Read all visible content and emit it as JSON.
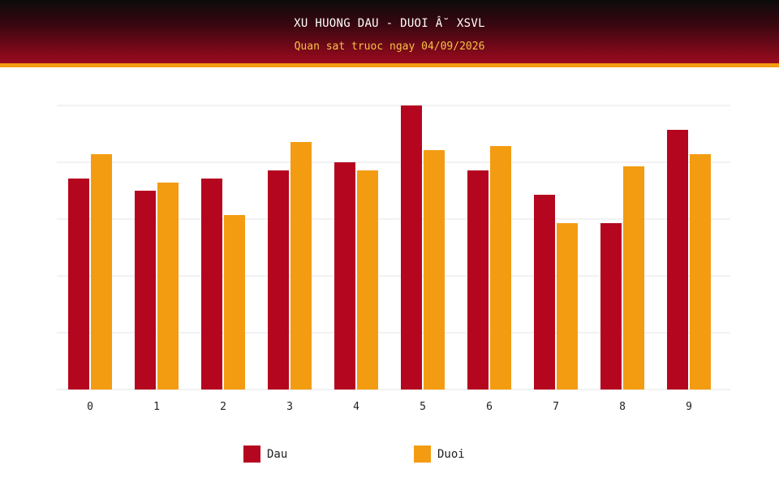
{
  "header": {
    "title": "XU HUONG DAU - DUOI Â˘ XSVL",
    "subtitle": "Quan sat truoc ngay 04/09/2026"
  },
  "colors": {
    "dau": "#b5061f",
    "duoi": "#f39c12"
  },
  "chart_data": {
    "type": "bar",
    "title": "XU HUONG DAU - DUOI Â˘ XSVL",
    "subtitle": "Quan sat truoc ngay 04/09/2026",
    "categories": [
      "0",
      "1",
      "2",
      "3",
      "4",
      "5",
      "6",
      "7",
      "8",
      "9"
    ],
    "series": [
      {
        "name": "Dau",
        "values": [
          26,
          24.5,
          26,
          27,
          28,
          35,
          27,
          24,
          20.5,
          32
        ]
      },
      {
        "name": "Duoi",
        "values": [
          29,
          25.5,
          21.5,
          30.5,
          27,
          29.5,
          30,
          20.5,
          27.5,
          29
        ]
      }
    ],
    "ylim": [
      0,
      35
    ],
    "grid": true,
    "legend": "bottom"
  }
}
